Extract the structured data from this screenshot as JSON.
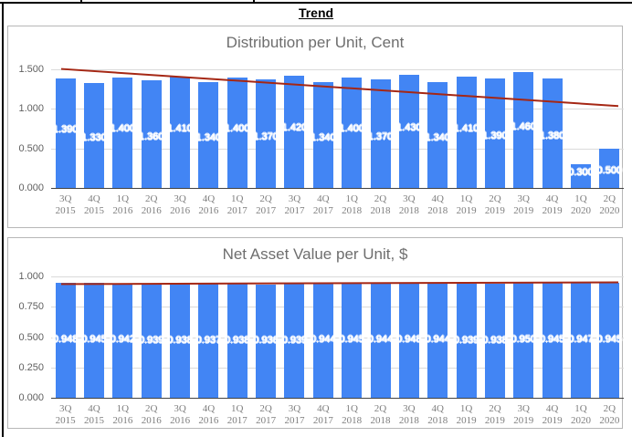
{
  "page": {
    "header": "Trend"
  },
  "colors": {
    "bar": "#4285F4",
    "trendline": "#A52714",
    "title": "#6E6E6E",
    "panel_border": "#B7B7B7",
    "gridline": "#DADADA",
    "baseline": "#424242",
    "y_tick": "#5F5F5F",
    "x_tick": "#7E7E7E",
    "annotation": "#FFFFFF"
  },
  "chart_data": [
    {
      "type": "bar",
      "title": "Distribution per Unit, Cent",
      "categories": [
        [
          "3Q",
          "2015"
        ],
        [
          "4Q",
          "2015"
        ],
        [
          "1Q",
          "2016"
        ],
        [
          "2Q",
          "2016"
        ],
        [
          "3Q",
          "2016"
        ],
        [
          "4Q",
          "2016"
        ],
        [
          "1Q",
          "2017"
        ],
        [
          "2Q",
          "2017"
        ],
        [
          "3Q",
          "2017"
        ],
        [
          "4Q",
          "2017"
        ],
        [
          "1Q",
          "2018"
        ],
        [
          "2Q",
          "2018"
        ],
        [
          "3Q",
          "2018"
        ],
        [
          "4Q",
          "2018"
        ],
        [
          "1Q",
          "2019"
        ],
        [
          "2Q",
          "2019"
        ],
        [
          "3Q",
          "2019"
        ],
        [
          "4Q",
          "2019"
        ],
        [
          "1Q",
          "2020"
        ],
        [
          "2Q",
          "2020"
        ]
      ],
      "values": [
        1.39,
        1.33,
        1.4,
        1.36,
        1.41,
        1.34,
        1.4,
        1.37,
        1.42,
        1.34,
        1.4,
        1.37,
        1.43,
        1.34,
        1.41,
        1.39,
        1.46,
        1.38,
        0.3,
        0.5
      ],
      "labels": [
        "1.390",
        "1.330",
        "1.400",
        "1.360",
        "1.410",
        "1.340",
        "1.400",
        "1.370",
        "1.420",
        "1.340",
        "1.400",
        "1.370",
        "1.430",
        "1.340",
        "1.410",
        "1.390",
        "1.460",
        "1.380",
        "0.300",
        "0.500"
      ],
      "yticks": [
        {
          "label": "0.000",
          "value": 0.0
        },
        {
          "label": "0.500",
          "value": 0.5
        },
        {
          "label": "1.000",
          "value": 1.0
        },
        {
          "label": "1.500",
          "value": 1.5
        }
      ],
      "ylim": [
        0,
        1.5
      ],
      "grid": true,
      "legend": "none",
      "stagger_labels": true,
      "trendline": {
        "start_value": 1.505,
        "end_value": 1.035
      }
    },
    {
      "type": "bar",
      "title": "Net Asset Value per Unit, $",
      "categories": [
        [
          "3Q",
          "2015"
        ],
        [
          "4Q",
          "2015"
        ],
        [
          "1Q",
          "2016"
        ],
        [
          "2Q",
          "2016"
        ],
        [
          "3Q",
          "2016"
        ],
        [
          "4Q",
          "2016"
        ],
        [
          "1Q",
          "2017"
        ],
        [
          "2Q",
          "2017"
        ],
        [
          "3Q",
          "2017"
        ],
        [
          "4Q",
          "2017"
        ],
        [
          "1Q",
          "2018"
        ],
        [
          "2Q",
          "2018"
        ],
        [
          "3Q",
          "2018"
        ],
        [
          "4Q",
          "2018"
        ],
        [
          "1Q",
          "2019"
        ],
        [
          "2Q",
          "2019"
        ],
        [
          "3Q",
          "2019"
        ],
        [
          "4Q",
          "2019"
        ],
        [
          "1Q",
          "2020"
        ],
        [
          "2Q",
          "2020"
        ]
      ],
      "values": [
        0.948,
        0.945,
        0.942,
        0.939,
        0.938,
        0.937,
        0.938,
        0.936,
        0.939,
        0.944,
        0.945,
        0.944,
        0.948,
        0.944,
        0.939,
        0.938,
        0.95,
        0.945,
        0.947,
        0.945
      ],
      "labels": [
        "0.948",
        "0.945",
        "0.942",
        "0.939",
        "0.938",
        "0.937",
        "0.938",
        "0.936",
        "0.939",
        "0.944",
        "0.945",
        "0.944",
        "0.948",
        "0.944",
        "0.939",
        "0.938",
        "0.950",
        "0.945",
        "0.947",
        "0.945"
      ],
      "yticks": [
        {
          "label": "0.000",
          "value": 0.0
        },
        {
          "label": "0.250",
          "value": 0.25
        },
        {
          "label": "0.500",
          "value": 0.5
        },
        {
          "label": "0.750",
          "value": 0.75
        },
        {
          "label": "1.000",
          "value": 1.0
        }
      ],
      "ylim": [
        0,
        1.0
      ],
      "grid": true,
      "legend": "none",
      "stagger_labels": false,
      "trendline": {
        "start_value": 0.937,
        "end_value": 0.951
      }
    }
  ]
}
